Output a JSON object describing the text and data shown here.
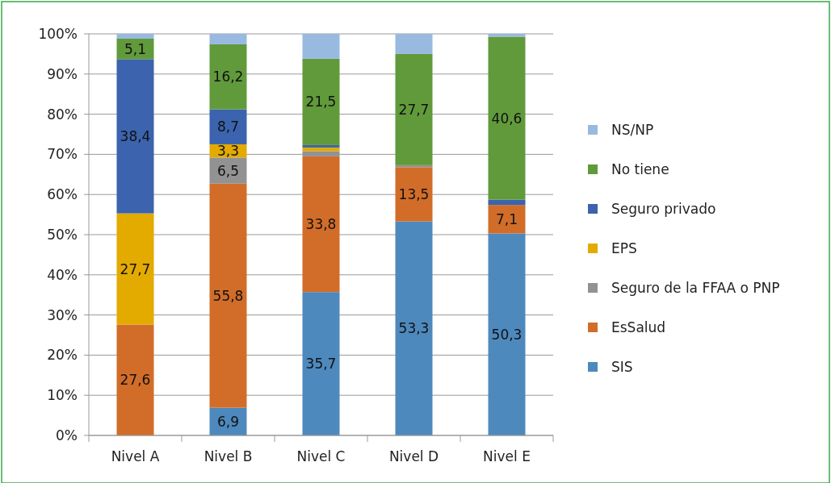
{
  "chart_data": {
    "type": "bar",
    "stacked": true,
    "categories": [
      "Nivel A",
      "Nivel B",
      "Nivel C",
      "Nivel D",
      "Nivel E"
    ],
    "series": [
      {
        "name": "SIS",
        "color": "#4e89bd",
        "values": [
          0,
          6.9,
          35.7,
          53.3,
          50.3
        ],
        "value_labels": [
          null,
          "6,9",
          "35,7",
          "53,3",
          "50,3"
        ]
      },
      {
        "name": "EsSalud",
        "color": "#d16d29",
        "values": [
          27.6,
          55.8,
          33.8,
          13.5,
          7.1
        ],
        "value_labels": [
          "27,6",
          "55,8",
          "33,8",
          "13,5",
          "7,1"
        ]
      },
      {
        "name": "Seguro de la FFAA o PNP",
        "color": "#929292",
        "values": [
          0,
          6.5,
          1.3,
          0.5,
          0
        ],
        "value_labels": [
          null,
          "6,5",
          null,
          null,
          null
        ]
      },
      {
        "name": "EPS",
        "color": "#e3aa00",
        "values": [
          27.7,
          3.3,
          0.9,
          0,
          0
        ],
        "value_labels": [
          "27,7",
          "3,3",
          null,
          null,
          null
        ]
      },
      {
        "name": "Seguro privado",
        "color": "#3b63ae",
        "values": [
          38.4,
          8.7,
          0.6,
          0,
          1.3
        ],
        "value_labels": [
          "38,4",
          "8,7",
          null,
          null,
          null
        ]
      },
      {
        "name": "No tiene",
        "color": "#619a3b",
        "values": [
          5.1,
          16.2,
          21.5,
          27.7,
          40.6
        ],
        "value_labels": [
          "5,1",
          "16,2",
          "21,5",
          "27,7",
          "40,6"
        ]
      },
      {
        "name": "NS/NP",
        "color": "#98bae0",
        "values": [
          1.2,
          2.6,
          6.2,
          5.0,
          0.7
        ],
        "value_labels": [
          null,
          null,
          null,
          null,
          null
        ]
      }
    ],
    "ylim": [
      0,
      100
    ],
    "yticks": [
      {
        "value": 0,
        "label": "0%"
      },
      {
        "value": 10,
        "label": "10%"
      },
      {
        "value": 20,
        "label": "20%"
      },
      {
        "value": 30,
        "label": "30%"
      },
      {
        "value": 40,
        "label": "40%"
      },
      {
        "value": 50,
        "label": "50%"
      },
      {
        "value": 60,
        "label": "60%"
      },
      {
        "value": 70,
        "label": "70%"
      },
      {
        "value": 80,
        "label": "80%"
      },
      {
        "value": 90,
        "label": "90%"
      },
      {
        "value": 100,
        "label": "100%"
      }
    ],
    "grid": "y",
    "legend": "right"
  }
}
